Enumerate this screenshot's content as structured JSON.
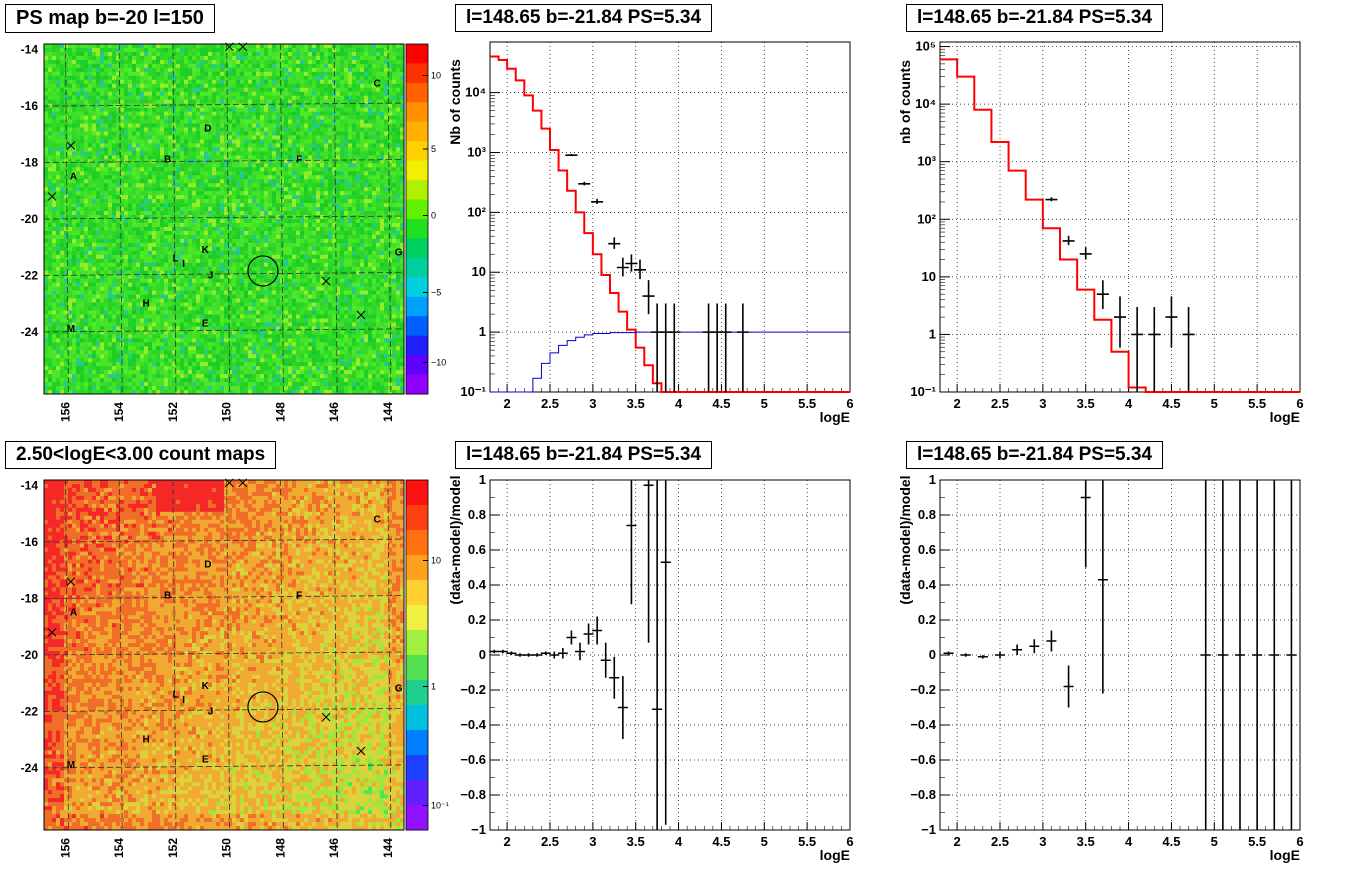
{
  "panels": {
    "map1_title": "PS map b=-20 l=150",
    "map2_title": "2.50<logE<3.00 count maps",
    "spec1_title": "l=148.65 b=-21.84 PS=5.34",
    "spec2_title": "l=148.65 b=-21.84 PS=5.34",
    "res1_title": "l=148.65 b=-21.84 PS=5.34",
    "res2_title": "l=148.65 b=-21.84 PS=5.34"
  },
  "maps": {
    "y_ticks": [
      "-14",
      "-16",
      "-18",
      "-20",
      "-22",
      "-24"
    ],
    "x_ticks": [
      "156",
      "154",
      "152",
      "150",
      "148",
      "146",
      "144"
    ],
    "sources": [
      {
        "label": "A",
        "l": 155.7,
        "b": -18.6
      },
      {
        "label": "B",
        "l": 152.2,
        "b": -18.0
      },
      {
        "label": "C",
        "l": 144.4,
        "b": -15.3
      },
      {
        "label": "D",
        "l": 150.7,
        "b": -16.9
      },
      {
        "label": "E",
        "l": 150.8,
        "b": -23.8
      },
      {
        "label": "F",
        "l": 147.3,
        "b": -18.0
      },
      {
        "label": "G",
        "l": 143.6,
        "b": -21.3
      },
      {
        "label": "H",
        "l": 153.0,
        "b": -23.1
      },
      {
        "label": "I",
        "l": 151.6,
        "b": -21.7
      },
      {
        "label": "J",
        "l": 150.6,
        "b": -22.1
      },
      {
        "label": "K",
        "l": 150.8,
        "b": -21.2
      },
      {
        "label": "L",
        "l": 151.9,
        "b": -21.5
      },
      {
        "label": "M",
        "l": 155.8,
        "b": -24.0
      }
    ],
    "crosses": [
      {
        "l": 149.9,
        "b": -13.9
      },
      {
        "l": 149.4,
        "b": -13.9
      },
      {
        "l": 155.8,
        "b": -17.4
      },
      {
        "l": 156.5,
        "b": -19.2
      },
      {
        "l": 146.3,
        "b": -22.2
      },
      {
        "l": 145.0,
        "b": -23.4
      }
    ],
    "circle": {
      "l": 148.65,
      "b": -21.84
    },
    "colorbar1_ticks": [
      "10",
      "5",
      "0",
      "−5",
      "−10"
    ],
    "colorbar2_ticks": [
      "10",
      "1",
      "10⁻¹"
    ],
    "colors": {
      "map1_base": "#22d622",
      "map2_base": "#f0a020"
    }
  },
  "spectra": {
    "x_label": "logE",
    "x_ticks": [
      "2",
      "2.5",
      "3",
      "3.5",
      "4",
      "4.5",
      "5",
      "5.5",
      "6"
    ],
    "y1_label": "Nb of counts",
    "y2_label": "nb of counts",
    "y1_ticks": [
      "10⁴",
      "10³",
      "10²",
      "10",
      "1",
      "10⁻¹"
    ],
    "y2_ticks": [
      "10⁵",
      "10⁴",
      "10³",
      "10²",
      "10",
      "1",
      "10⁻¹"
    ]
  },
  "residuals": {
    "x_label": "logE",
    "x_ticks": [
      "2",
      "2.5",
      "3",
      "3.5",
      "4",
      "4.5",
      "5",
      "5.5",
      "6"
    ],
    "y_label": "(data-model)/model",
    "y_ticks": [
      "1",
      "0.8",
      "0.6",
      "0.4",
      "0.2",
      "0",
      "−0.2",
      "−0.4",
      "−0.6",
      "−0.8",
      "−1"
    ]
  },
  "chart_data": [
    {
      "type": "line",
      "title": "l=148.65 b=-21.84 PS=5.34",
      "xlabel": "logE",
      "ylabel": "Nb of counts",
      "xlim": [
        1.8,
        6.0
      ],
      "ylim": [
        0.1,
        70000
      ],
      "log_y": true,
      "grid": true,
      "series": [
        {
          "name": "",
          "color": "#ff0000",
          "style": "step",
          "x": [
            1.8,
            1.9,
            2.0,
            2.1,
            2.2,
            2.3,
            2.4,
            2.5,
            2.6,
            2.7,
            2.8,
            2.9,
            3.0,
            3.1,
            3.2,
            3.3,
            3.4,
            3.5,
            3.6,
            3.7,
            3.8,
            3.9,
            4.0,
            4.1,
            4.2,
            6.0
          ],
          "y": [
            40000,
            35000,
            25000,
            16000,
            9000,
            5000,
            2500,
            1100,
            500,
            230,
            100,
            45,
            20,
            9,
            4.5,
            2.2,
            1.1,
            0.55,
            0.28,
            0.14,
            0.1,
            0.1,
            0.1,
            0.1,
            0.1,
            0.1
          ]
        },
        {
          "name": "",
          "color": "#0000cc",
          "style": "step",
          "x": [
            1.8,
            2.2,
            2.3,
            2.4,
            2.5,
            2.6,
            2.7,
            2.8,
            2.9,
            3.0,
            3.2,
            3.5,
            6.0
          ],
          "y": [
            0.1,
            0.1,
            0.17,
            0.3,
            0.45,
            0.6,
            0.72,
            0.82,
            0.9,
            0.95,
            0.98,
            1.0,
            1.0
          ]
        }
      ],
      "points": {
        "x": [
          2.75,
          2.9,
          3.05,
          3.25,
          3.35,
          3.45,
          3.55,
          3.65,
          3.75,
          3.85,
          3.95,
          4.35,
          4.45,
          4.55,
          4.75
        ],
        "y": [
          900,
          300,
          150,
          30,
          12,
          14,
          11,
          4,
          1,
          1,
          1,
          1,
          1,
          1,
          1
        ]
      }
    },
    {
      "type": "line",
      "title": "l=148.65 b=-21.84 PS=5.34",
      "xlabel": "logE",
      "ylabel": "nb of counts",
      "xlim": [
        1.8,
        6.0
      ],
      "ylim": [
        0.1,
        120000
      ],
      "log_y": true,
      "grid": true,
      "series": [
        {
          "name": "",
          "color": "#ff0000",
          "style": "step",
          "x": [
            1.8,
            2.0,
            2.2,
            2.4,
            2.6,
            2.8,
            3.0,
            3.2,
            3.4,
            3.6,
            3.8,
            4.0,
            4.2,
            6.0
          ],
          "y": [
            60000,
            30000,
            8000,
            2200,
            700,
            220,
            70,
            20,
            6,
            1.8,
            0.5,
            0.12,
            0.1,
            0.1
          ]
        }
      ],
      "points": {
        "x": [
          3.1,
          3.3,
          3.5,
          3.7,
          3.9,
          4.1,
          4.3,
          4.5,
          4.7
        ],
        "y": [
          220,
          42,
          25,
          5,
          2,
          1,
          1,
          2,
          1
        ]
      }
    },
    {
      "type": "scatter",
      "title": "l=148.65 b=-21.84 PS=5.34",
      "xlabel": "logE",
      "ylabel": "(data-model)/model",
      "xlim": [
        1.8,
        6.0
      ],
      "ylim": [
        -1,
        1
      ],
      "grid": true,
      "x": [
        1.85,
        1.95,
        2.05,
        2.15,
        2.25,
        2.35,
        2.45,
        2.55,
        2.65,
        2.75,
        2.85,
        2.95,
        3.05,
        3.15,
        3.25,
        3.35,
        3.45,
        3.65,
        3.75,
        3.85
      ],
      "y": [
        0.02,
        0.02,
        0.01,
        0.0,
        0.0,
        0.0,
        0.01,
        0.0,
        0.01,
        0.1,
        0.02,
        0.12,
        0.14,
        -0.03,
        -0.13,
        -0.3,
        0.74,
        0.97,
        -0.31,
        0.53
      ],
      "err": [
        0.01,
        0.01,
        0.01,
        0.01,
        0.01,
        0.01,
        0.01,
        0.02,
        0.03,
        0.04,
        0.05,
        0.06,
        0.08,
        0.1,
        0.12,
        0.18,
        0.45,
        0.9,
        1.4,
        1.5
      ]
    },
    {
      "type": "scatter",
      "title": "l=148.65 b=-21.84 PS=5.34",
      "xlabel": "logE",
      "ylabel": "(data-model)/model",
      "xlim": [
        1.8,
        6.0
      ],
      "ylim": [
        -1,
        1
      ],
      "grid": true,
      "x": [
        1.9,
        2.1,
        2.3,
        2.5,
        2.7,
        2.9,
        3.1,
        3.3,
        3.5,
        3.7,
        4.9,
        5.1,
        5.3,
        5.5,
        5.7,
        5.9
      ],
      "y": [
        0.01,
        0.0,
        -0.01,
        0.0,
        0.03,
        0.05,
        0.08,
        -0.18,
        0.9,
        0.43,
        0,
        0,
        0,
        0,
        0,
        0
      ],
      "err": [
        0.01,
        0.01,
        0.01,
        0.02,
        0.03,
        0.04,
        0.06,
        0.12,
        0.4,
        0.65,
        2,
        2,
        2,
        2,
        2,
        2
      ]
    }
  ]
}
